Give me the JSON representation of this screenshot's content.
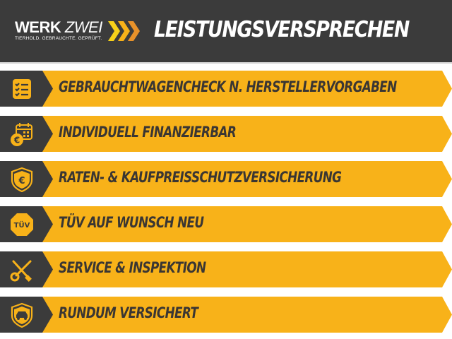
{
  "header": {
    "logo": {
      "brand_part1": "WERK",
      "brand_part2": "ZWEI",
      "tagline": "TIERHOLD. GEBRAUCHTE. GEPRÜFT."
    },
    "title": "LEISTUNGSVERSPRECHEN"
  },
  "colors": {
    "dark": "#3b3b3b",
    "yellow": "#f8b219",
    "text": "#3a3633"
  },
  "items": [
    {
      "label": "GEBRAUCHTWAGENCHECK N. HERSTELLERVORGABEN",
      "icon": "checklist-icon"
    },
    {
      "label": "INDIVIDUELL FINANZIERBAR",
      "icon": "calendar-euro-icon"
    },
    {
      "label": "RATEN- & KAUFPREISSCHUTZVERSICHERUNG",
      "icon": "shield-euro-icon",
      "icon_text": "€"
    },
    {
      "label": "TÜV AUF WUNSCH NEU",
      "icon": "tuv-badge-icon",
      "icon_text": "TÜV"
    },
    {
      "label": "SERVICE & INSPEKTION",
      "icon": "wrench-screwdriver-icon"
    },
    {
      "label": "RUNDUM VERSICHERT",
      "icon": "shield-car-icon"
    }
  ]
}
